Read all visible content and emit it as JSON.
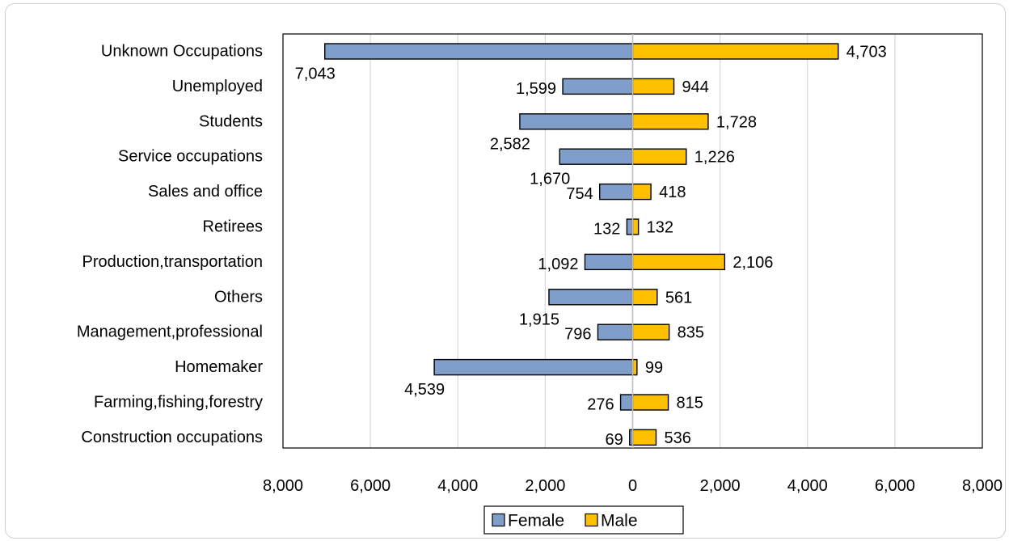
{
  "caption": "",
  "chart_data": {
    "type": "bar",
    "orientation": "horizontal",
    "layout": "diverging",
    "categories": [
      "Unknown Occupations",
      "Unemployed",
      "Students",
      "Service occupations",
      "Sales and office",
      "Retirees",
      "Production,transportation",
      "Others",
      "Management,professional",
      "Homemaker",
      "Farming,fishing,forestry",
      "Construction occupations"
    ],
    "series": [
      {
        "name": "Female",
        "direction": "left",
        "color": "#7f9ec9",
        "values": [
          7043,
          1599,
          2582,
          1670,
          754,
          132,
          1092,
          1915,
          796,
          4539,
          276,
          69
        ],
        "labels": [
          "7,043",
          "1,599",
          "2,582",
          "1,670",
          "754",
          "132",
          "1,092",
          "1,915",
          "796",
          "4,539",
          "276",
          "69"
        ]
      },
      {
        "name": "Male",
        "direction": "right",
        "color": "#ffc000",
        "values": [
          4703,
          944,
          1728,
          1226,
          418,
          132,
          2106,
          561,
          835,
          99,
          815,
          536
        ],
        "labels": [
          "4,703",
          "944",
          "1,728",
          "1,226",
          "418",
          "132",
          "2,106",
          "561",
          "835",
          "99",
          "815",
          "536"
        ]
      }
    ],
    "xlim": [
      -8000,
      8000
    ],
    "x_ticks": [
      -8000,
      -6000,
      -4000,
      -2000,
      0,
      2000,
      4000,
      6000,
      8000
    ],
    "x_tick_labels": [
      "8,000",
      "6,000",
      "4,000",
      "2,000",
      "0",
      "2,000",
      "4,000",
      "6,000",
      "8,000"
    ],
    "grid": "vertical",
    "legend": "bottom",
    "title": "",
    "xlabel": "",
    "ylabel": ""
  }
}
